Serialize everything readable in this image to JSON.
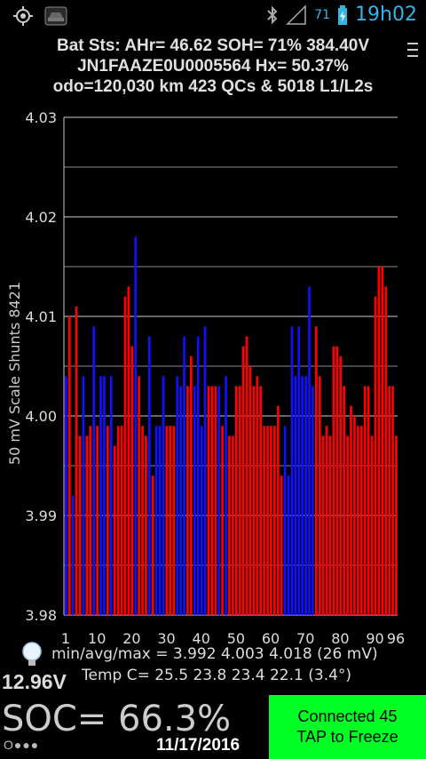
{
  "status_bar": {
    "icons": [
      "gps-icon",
      "car-notification-icon",
      "bluetooth-icon",
      "signal-icon",
      "battery-charging-icon"
    ],
    "battery_pct": "71",
    "clock": "19h02"
  },
  "header": {
    "line1": "Bat Sts: AHr= 46.62 SOH= 71% 384.40V",
    "line2": "JN1FAAZE0U0005564   Hx= 50.37%",
    "line3": "odo=120,030 km 423 QCs & 5018 L1/L2s"
  },
  "menu_icon": "overflow-menu-icon",
  "chart_data": {
    "type": "bar",
    "ylabel": "50 mV Scale   Shunts 8421",
    "ylim": [
      3.98,
      4.03
    ],
    "y_ticks": [
      "4.03",
      "4.02",
      "4.01",
      "4.00",
      "3.99",
      "3.98"
    ],
    "x_tick_labels": [
      "1",
      "10",
      "20",
      "30",
      "40",
      "50",
      "60",
      "70",
      "80",
      "90",
      "96"
    ],
    "grid": true,
    "colors": {
      "shunted": "#ff0000",
      "normal": "#1010ff"
    },
    "cells": [
      {
        "v": 4.004,
        "c": "b"
      },
      {
        "v": 4.01,
        "c": "r"
      },
      {
        "v": 3.992,
        "c": "b"
      },
      {
        "v": 4.011,
        "c": "r"
      },
      {
        "v": 3.998,
        "c": "r"
      },
      {
        "v": 4.004,
        "c": "b"
      },
      {
        "v": 3.998,
        "c": "r"
      },
      {
        "v": 3.999,
        "c": "r"
      },
      {
        "v": 4.009,
        "c": "b"
      },
      {
        "v": 3.999,
        "c": "r"
      },
      {
        "v": 4.004,
        "c": "b"
      },
      {
        "v": 4.004,
        "c": "b"
      },
      {
        "v": 3.999,
        "c": "r"
      },
      {
        "v": 4.004,
        "c": "b"
      },
      {
        "v": 3.997,
        "c": "r"
      },
      {
        "v": 3.999,
        "c": "r"
      },
      {
        "v": 3.999,
        "c": "r"
      },
      {
        "v": 4.012,
        "c": "r"
      },
      {
        "v": 4.013,
        "c": "r"
      },
      {
        "v": 4.007,
        "c": "r"
      },
      {
        "v": 4.018,
        "c": "b"
      },
      {
        "v": 4.004,
        "c": "r"
      },
      {
        "v": 3.999,
        "c": "r"
      },
      {
        "v": 3.998,
        "c": "r"
      },
      {
        "v": 4.008,
        "c": "b"
      },
      {
        "v": 3.994,
        "c": "r"
      },
      {
        "v": 3.999,
        "c": "b"
      },
      {
        "v": 3.999,
        "c": "b"
      },
      {
        "v": 4.004,
        "c": "b"
      },
      {
        "v": 3.999,
        "c": "r"
      },
      {
        "v": 3.999,
        "c": "r"
      },
      {
        "v": 3.999,
        "c": "r"
      },
      {
        "v": 4.004,
        "c": "b"
      },
      {
        "v": 4.003,
        "c": "b"
      },
      {
        "v": 4.008,
        "c": "b"
      },
      {
        "v": 4.003,
        "c": "r"
      },
      {
        "v": 4.006,
        "c": "r"
      },
      {
        "v": 4.003,
        "c": "b"
      },
      {
        "v": 4.008,
        "c": "b"
      },
      {
        "v": 3.999,
        "c": "b"
      },
      {
        "v": 4.009,
        "c": "b"
      },
      {
        "v": 4.003,
        "c": "r"
      },
      {
        "v": 4.003,
        "c": "r"
      },
      {
        "v": 4.003,
        "c": "r"
      },
      {
        "v": 4.003,
        "c": "b"
      },
      {
        "v": 3.999,
        "c": "r"
      },
      {
        "v": 4.004,
        "c": "b"
      },
      {
        "v": 3.998,
        "c": "r"
      },
      {
        "v": 3.998,
        "c": "r"
      },
      {
        "v": 4.003,
        "c": "r"
      },
      {
        "v": 4.003,
        "c": "r"
      },
      {
        "v": 4.007,
        "c": "r"
      },
      {
        "v": 4.008,
        "c": "r"
      },
      {
        "v": 4.005,
        "c": "r"
      },
      {
        "v": 4.003,
        "c": "r"
      },
      {
        "v": 4.004,
        "c": "r"
      },
      {
        "v": 4.003,
        "c": "r"
      },
      {
        "v": 3.999,
        "c": "r"
      },
      {
        "v": 3.999,
        "c": "r"
      },
      {
        "v": 3.999,
        "c": "r"
      },
      {
        "v": 3.999,
        "c": "r"
      },
      {
        "v": 4.001,
        "c": "r"
      },
      {
        "v": 3.994,
        "c": "r"
      },
      {
        "v": 3.999,
        "c": "b"
      },
      {
        "v": 3.994,
        "c": "b"
      },
      {
        "v": 4.009,
        "c": "b"
      },
      {
        "v": 4.004,
        "c": "b"
      },
      {
        "v": 4.009,
        "c": "b"
      },
      {
        "v": 4.004,
        "c": "b"
      },
      {
        "v": 4.004,
        "c": "b"
      },
      {
        "v": 4.013,
        "c": "b"
      },
      {
        "v": 4.003,
        "c": "b"
      },
      {
        "v": 4.009,
        "c": "r"
      },
      {
        "v": 4.004,
        "c": "r"
      },
      {
        "v": 3.998,
        "c": "r"
      },
      {
        "v": 3.999,
        "c": "r"
      },
      {
        "v": 3.998,
        "c": "r"
      },
      {
        "v": 4.007,
        "c": "r"
      },
      {
        "v": 4.007,
        "c": "r"
      },
      {
        "v": 4.006,
        "c": "r"
      },
      {
        "v": 4.003,
        "c": "r"
      },
      {
        "v": 3.998,
        "c": "r"
      },
      {
        "v": 4.001,
        "c": "r"
      },
      {
        "v": 4.0,
        "c": "r"
      },
      {
        "v": 3.999,
        "c": "r"
      },
      {
        "v": 3.999,
        "c": "r"
      },
      {
        "v": 4.003,
        "c": "r"
      },
      {
        "v": 4.003,
        "c": "r"
      },
      {
        "v": 3.998,
        "c": "r"
      },
      {
        "v": 4.012,
        "c": "r"
      },
      {
        "v": 4.015,
        "c": "r"
      },
      {
        "v": 4.015,
        "c": "r"
      },
      {
        "v": 4.013,
        "c": "r"
      },
      {
        "v": 4.003,
        "c": "r"
      },
      {
        "v": 4.003,
        "c": "r"
      },
      {
        "v": 3.998,
        "c": "r"
      }
    ]
  },
  "stats": {
    "bulb_icon": "lightbulb-icon",
    "minmax_line": "min/avg/max = 3.992 4.003 4.018  (26 mV)",
    "voltage": "12.96V",
    "temp_line": "Temp C= 25.5  23.8  23.4  22.1  (3.4°)",
    "soc": "SOC= 66.3%",
    "dots": "O●●●",
    "date": "11/17/2016"
  },
  "connect_button": {
    "line1": "Connected 45",
    "line2": "TAP to Freeze",
    "color": "#00ff22"
  }
}
